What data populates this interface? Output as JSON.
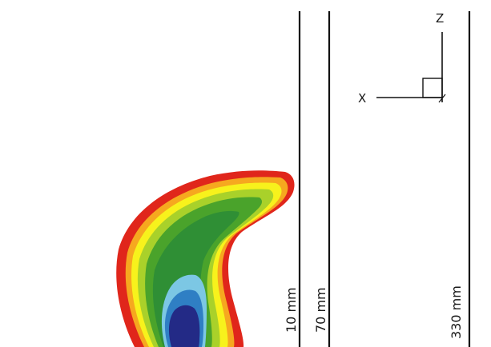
{
  "annotations": {
    "line_10": "10 mm",
    "line_70": "70 mm",
    "line_330": "330 mm"
  },
  "axes": {
    "x_label": "X",
    "z_label": "Z"
  },
  "colors": {
    "line": "#111111",
    "outer_red": "#e0261b",
    "orange": "#f6a81f",
    "yellow": "#f7f21c",
    "light_green": "#a9d12a",
    "green": "#4aa32b",
    "dark_green": "#2f8f35",
    "cyan": "#7cc7e4",
    "blue": "#2f7fc4",
    "navy": "#232a86"
  }
}
